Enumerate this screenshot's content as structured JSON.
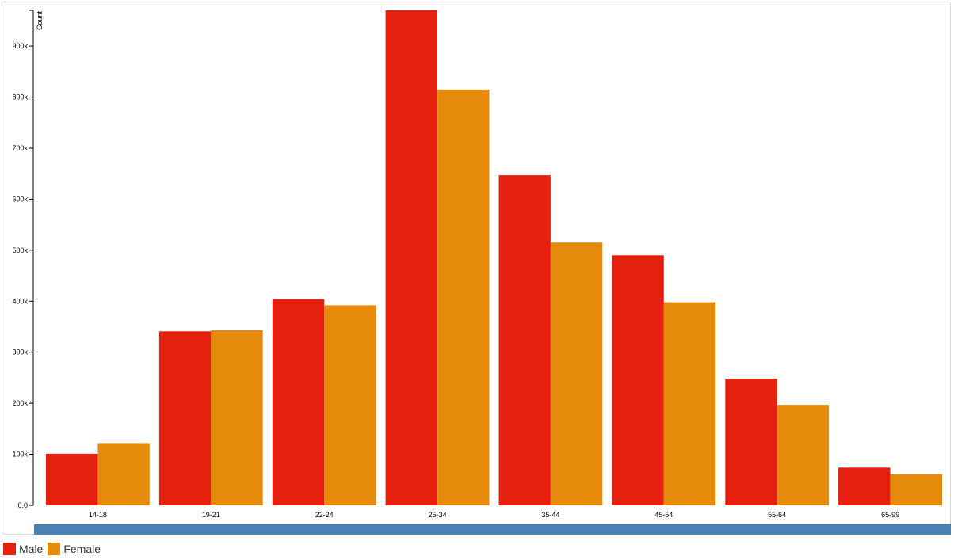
{
  "chart_data": {
    "type": "bar",
    "ylabel": "Count",
    "ylim": [
      0,
      970000
    ],
    "yticks": [
      0,
      100000,
      200000,
      300000,
      400000,
      500000,
      600000,
      700000,
      800000,
      900000
    ],
    "ytick_labels": [
      "0.0",
      "100k",
      "200k",
      "300k",
      "400k",
      "500k",
      "600k",
      "700k",
      "800k",
      "900k"
    ],
    "categories": [
      "14-18",
      "19-21",
      "22-24",
      "25-34",
      "35-44",
      "45-54",
      "55-64",
      "65-99"
    ],
    "series": [
      {
        "name": "Male",
        "color": "#e6200f",
        "values": [
          101000,
          341000,
          404000,
          970000,
          647000,
          490000,
          248000,
          74000
        ]
      },
      {
        "name": "Female",
        "color": "#e68a0c",
        "values": [
          122000,
          343000,
          392000,
          815000,
          515000,
          398000,
          197000,
          61000
        ]
      }
    ],
    "legend_position": "bottom-left",
    "grid": false
  },
  "scrollbar": {
    "color": "#4682b4"
  }
}
